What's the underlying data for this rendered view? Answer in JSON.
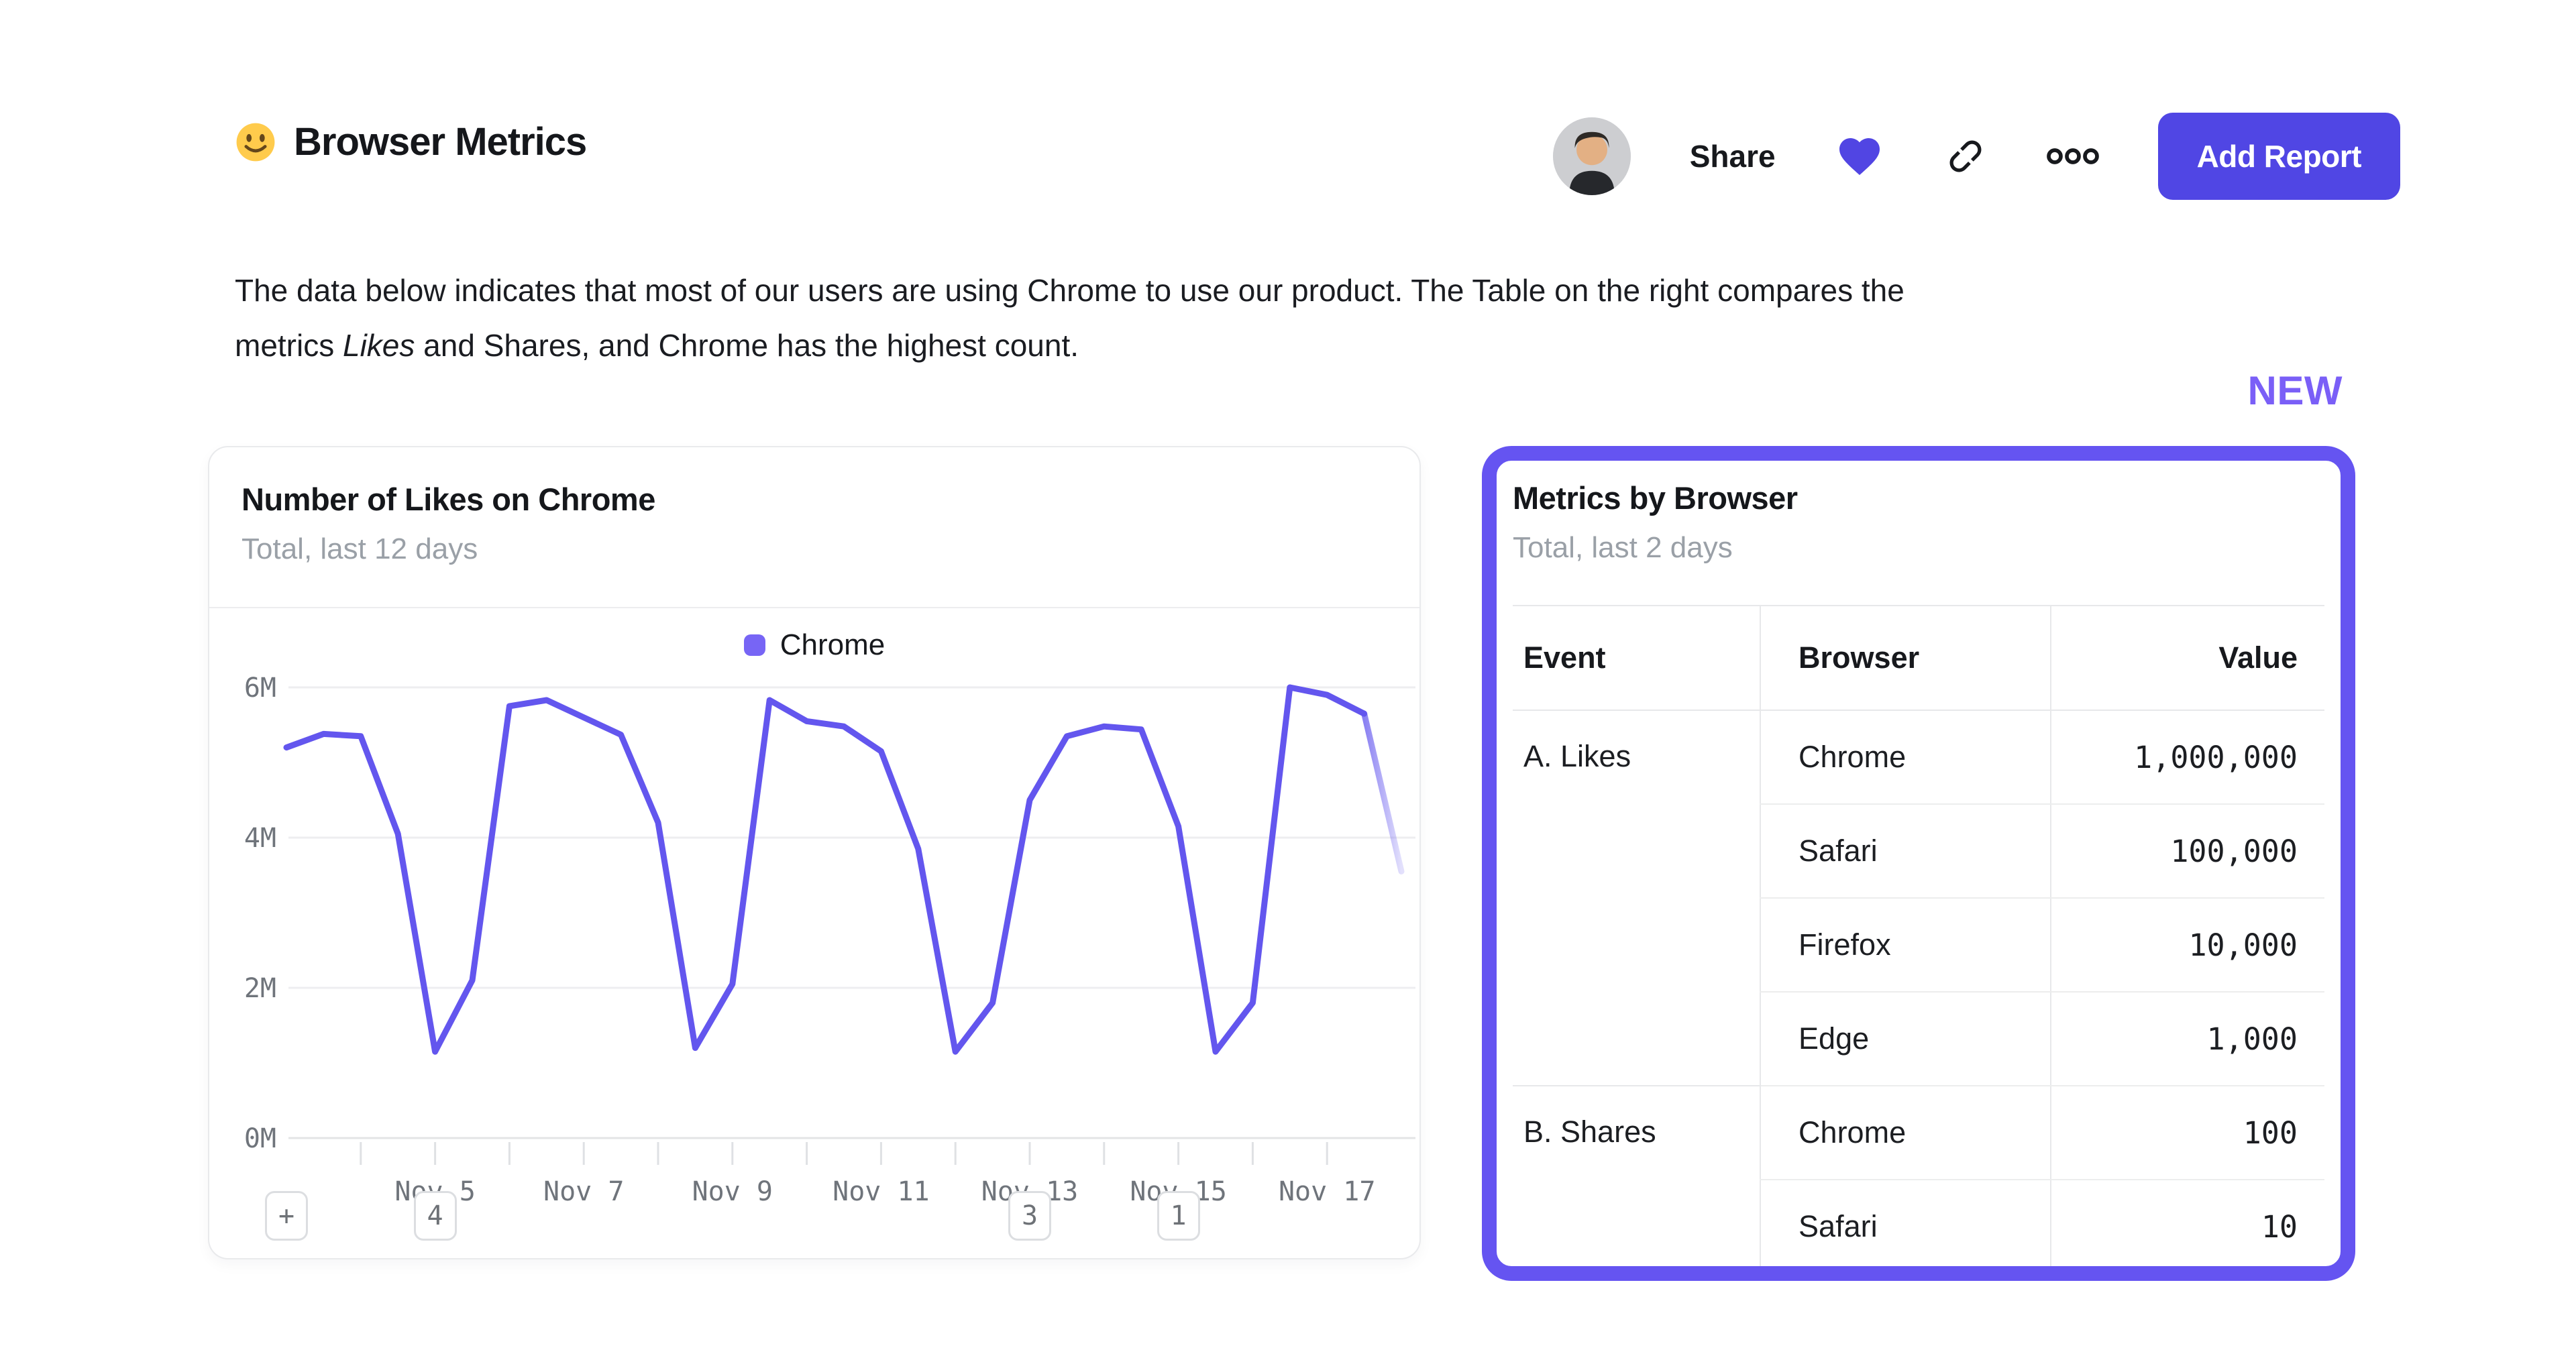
{
  "header": {
    "emoji": "slightly-smiling-face",
    "title": "Browser Metrics",
    "share_label": "Share",
    "add_report_label": "Add Report"
  },
  "description": {
    "line1": "The data below indicates that most of our users are using Chrome to use our product. The Table on the right compares the",
    "line2_pre": "metrics ",
    "line2_italic": "Likes",
    "line2_post": " and Shares, and Chrome has the highest count."
  },
  "new_badge": "NEW",
  "colors": {
    "accent_button": "#5046e4",
    "heart": "#5145e3",
    "chart_line": "#6356ee",
    "legend_swatch": "#7765f5",
    "card_border": "#6554f1",
    "new_text": "#7a5ff7",
    "axis_text": "#6f747b",
    "grid": "#eeeef0",
    "baseline": "#e3e4e6",
    "tick": "#dfe1e4"
  },
  "chart_card": {
    "title": "Number of Likes on Chrome",
    "subtitle": "Total, last 12 days",
    "legend": "Chrome",
    "annotations": [
      {
        "label": "+",
        "index": 0
      },
      {
        "label": "4",
        "index": 4
      },
      {
        "label": "3",
        "index": 20
      },
      {
        "label": "1",
        "index": 24
      }
    ]
  },
  "chart_data": {
    "type": "line",
    "title": "Number of Likes on Chrome",
    "series": [
      {
        "name": "Chrome",
        "unit": "millions of likes",
        "x_cadence": "half-day points, Nov 3 through Nov 18",
        "values": [
          5.2,
          5.38,
          5.35,
          4.05,
          1.15,
          2.1,
          5.75,
          5.83,
          5.6,
          5.37,
          4.2,
          1.2,
          2.05,
          5.83,
          5.55,
          5.48,
          5.15,
          3.85,
          1.15,
          1.8,
          4.5,
          5.35,
          5.48,
          5.44,
          4.15,
          1.15,
          1.8,
          6.0,
          5.9,
          5.65,
          3.55
        ]
      }
    ],
    "last_segment_faded": true,
    "y_ticks": [
      {
        "label": "0M",
        "value": 0
      },
      {
        "label": "2M",
        "value": 2
      },
      {
        "label": "4M",
        "value": 4
      },
      {
        "label": "6M",
        "value": 6
      }
    ],
    "ylim": [
      0,
      6.4
    ],
    "minor_tick_indices": [
      2,
      4,
      6,
      8,
      10,
      12,
      14,
      16,
      18,
      20,
      22,
      24,
      26,
      28
    ],
    "x_labels": [
      {
        "label": "Nov 5",
        "index": 4
      },
      {
        "label": "Nov 7",
        "index": 8
      },
      {
        "label": "Nov 9",
        "index": 12
      },
      {
        "label": "Nov 11",
        "index": 16
      },
      {
        "label": "Nov 13",
        "index": 20
      },
      {
        "label": "Nov 15",
        "index": 24
      },
      {
        "label": "Nov 17",
        "index": 28
      }
    ],
    "grid": "horizontal",
    "legend_position": "top-center"
  },
  "table_card": {
    "title": "Metrics by Browser",
    "subtitle": "Total, last 2 days",
    "columns": [
      "Event",
      "Browser",
      "Value"
    ],
    "rows": [
      {
        "event": "A. Likes",
        "browser": "Chrome",
        "value": "1,000,000"
      },
      {
        "event": "",
        "browser": "Safari",
        "value": "100,000"
      },
      {
        "event": "",
        "browser": "Firefox",
        "value": "10,000"
      },
      {
        "event": "",
        "browser": "Edge",
        "value": "1,000"
      },
      {
        "event": "B. Shares",
        "browser": "Chrome",
        "value": "100"
      },
      {
        "event": "",
        "browser": "Safari",
        "value": "10"
      }
    ]
  }
}
